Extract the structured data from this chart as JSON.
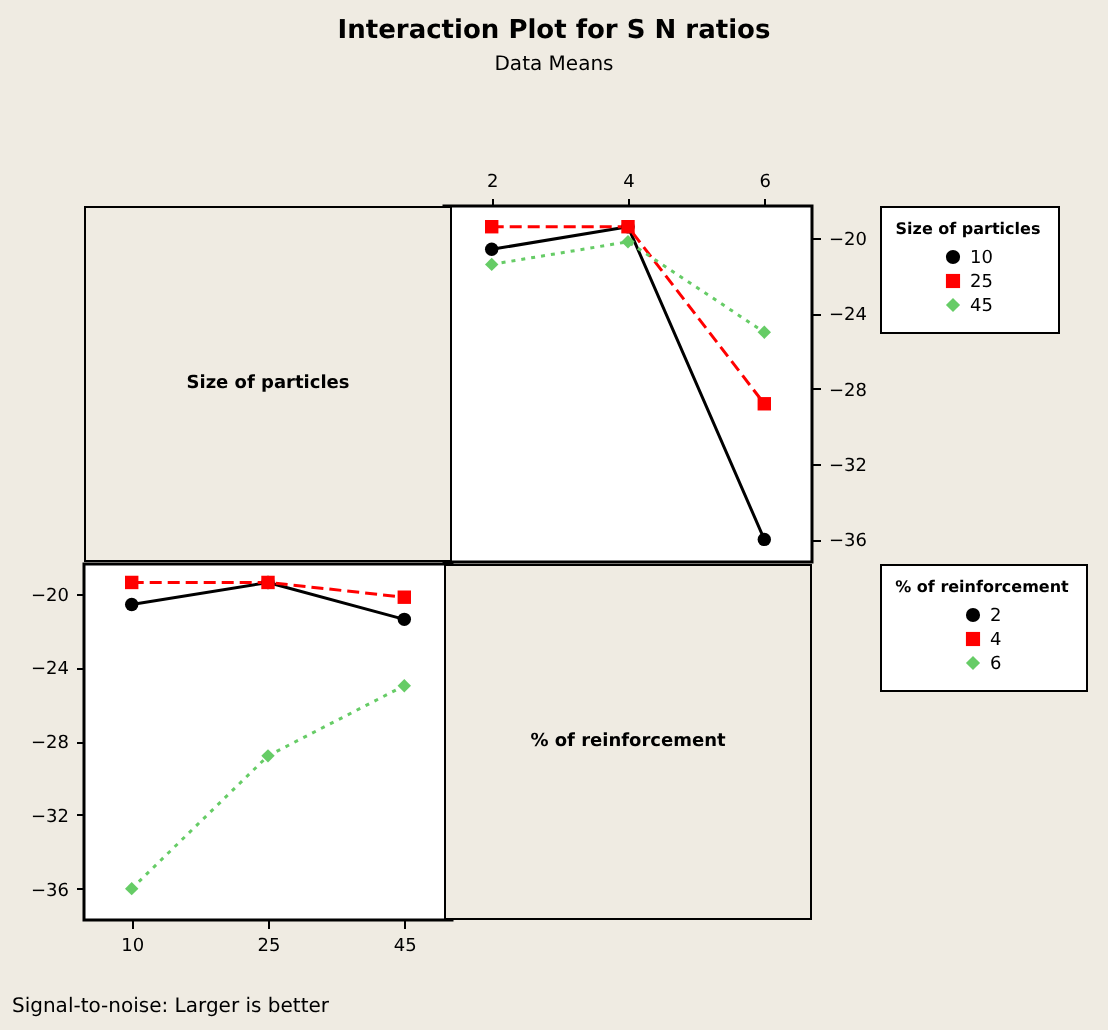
{
  "chart_data": [
    {
      "type": "other",
      "title": "Interaction Plot for S N ratios",
      "subtitle": "Data Means",
      "annotations": [
        "Signal-to-noise: Larger is better"
      ]
    },
    {
      "type": "other",
      "annotations": [
        "Size of particles"
      ]
    },
    {
      "type": "line",
      "categories": [
        "2",
        "4",
        "6"
      ],
      "legend_title": "Size of particles",
      "legend": "right",
      "ylim": [
        -37.2,
        -18.3
      ],
      "yticks": [
        -20,
        -24,
        -28,
        -32,
        -36
      ],
      "series": [
        {
          "name": "10",
          "color": "#000000",
          "marker": "circle",
          "line_style": "solid",
          "values": [
            -20.6,
            -19.4,
            -36
          ]
        },
        {
          "name": "25",
          "color": "#ff0000",
          "marker": "square",
          "line_style": "dashed",
          "values": [
            -19.4,
            -19.4,
            -28.8
          ]
        },
        {
          "name": "45",
          "color": "#66cc66",
          "marker": "diamond",
          "line_style": "dotted",
          "values": [
            -21.4,
            -20.2,
            -25.0
          ]
        }
      ]
    },
    {
      "type": "line",
      "categories": [
        "10",
        "25",
        "45"
      ],
      "legend_title": "% of reinforcement",
      "legend": "right",
      "ylim": [
        -37.7,
        -18.4
      ],
      "yticks": [
        -20,
        -24,
        -28,
        -32,
        -36
      ],
      "series": [
        {
          "name": "2",
          "color": "#000000",
          "marker": "circle",
          "line_style": "solid",
          "values": [
            -20.6,
            -19.4,
            -21.4
          ]
        },
        {
          "name": "4",
          "color": "#ff0000",
          "marker": "square",
          "line_style": "dashed",
          "values": [
            -19.4,
            -19.4,
            -20.2
          ]
        },
        {
          "name": "6",
          "color": "#66cc66",
          "marker": "diamond",
          "line_style": "dotted",
          "values": [
            -36,
            -28.8,
            -25.0
          ]
        }
      ]
    },
    {
      "type": "other",
      "annotations": [
        "% of reinforcement"
      ]
    }
  ]
}
